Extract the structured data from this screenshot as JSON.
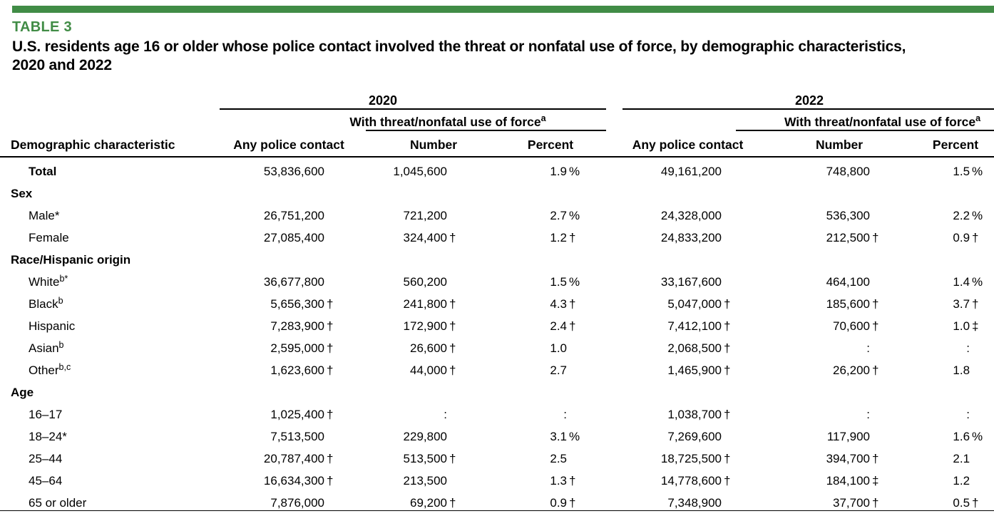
{
  "colors": {
    "accent_green": "#418c46"
  },
  "header": {
    "table_label": "TABLE 3",
    "title": "U.S. residents age 16 or older whose police contact involved the threat or nonfatal use of force, by demographic characteristics, 2020 and 2022"
  },
  "table": {
    "year_2020": "2020",
    "year_2022": "2022",
    "force_label": "With threat/nonfatal use of force",
    "force_footnote_marker": "a",
    "col_demographic": "Demographic characteristic",
    "col_any_contact": "Any police contact",
    "col_number": "Number",
    "col_percent": "Percent",
    "rows": [
      {
        "kind": "data",
        "bold": true,
        "label": "Total",
        "sup": "",
        "cells": [
          {
            "v": "53,836,600",
            "s": ""
          },
          {
            "v": "1,045,600",
            "s": ""
          },
          {
            "v": "1.9",
            "s": "%"
          },
          {
            "v": "49,161,200",
            "s": ""
          },
          {
            "v": "748,800",
            "s": ""
          },
          {
            "v": "1.5",
            "s": "%"
          }
        ]
      },
      {
        "kind": "section",
        "label": "Sex"
      },
      {
        "kind": "data",
        "bold": false,
        "label": "Male*",
        "sup": "",
        "cells": [
          {
            "v": "26,751,200",
            "s": ""
          },
          {
            "v": "721,200",
            "s": ""
          },
          {
            "v": "2.7",
            "s": "%"
          },
          {
            "v": "24,328,000",
            "s": ""
          },
          {
            "v": "536,300",
            "s": ""
          },
          {
            "v": "2.2",
            "s": "%"
          }
        ]
      },
      {
        "kind": "data",
        "bold": false,
        "label": "Female",
        "sup": "",
        "cells": [
          {
            "v": "27,085,400",
            "s": ""
          },
          {
            "v": "324,400",
            "s": "†"
          },
          {
            "v": "1.2",
            "s": "†"
          },
          {
            "v": "24,833,200",
            "s": ""
          },
          {
            "v": "212,500",
            "s": "†"
          },
          {
            "v": "0.9",
            "s": "†"
          }
        ]
      },
      {
        "kind": "section",
        "label": "Race/Hispanic origin"
      },
      {
        "kind": "data",
        "bold": false,
        "label": "White",
        "sup": "b*",
        "cells": [
          {
            "v": "36,677,800",
            "s": ""
          },
          {
            "v": "560,200",
            "s": ""
          },
          {
            "v": "1.5",
            "s": "%"
          },
          {
            "v": "33,167,600",
            "s": ""
          },
          {
            "v": "464,100",
            "s": ""
          },
          {
            "v": "1.4",
            "s": "%"
          }
        ]
      },
      {
        "kind": "data",
        "bold": false,
        "label": "Black",
        "sup": "b",
        "cells": [
          {
            "v": "5,656,300",
            "s": "†"
          },
          {
            "v": "241,800",
            "s": "†"
          },
          {
            "v": "4.3",
            "s": "†"
          },
          {
            "v": "5,047,000",
            "s": "†"
          },
          {
            "v": "185,600",
            "s": "†"
          },
          {
            "v": "3.7",
            "s": "†"
          }
        ]
      },
      {
        "kind": "data",
        "bold": false,
        "label": "Hispanic",
        "sup": "",
        "cells": [
          {
            "v": "7,283,900",
            "s": "†"
          },
          {
            "v": "172,900",
            "s": "†"
          },
          {
            "v": "2.4",
            "s": "†"
          },
          {
            "v": "7,412,100",
            "s": "†"
          },
          {
            "v": "70,600",
            "s": "†"
          },
          {
            "v": "1.0",
            "s": "‡"
          }
        ]
      },
      {
        "kind": "data",
        "bold": false,
        "label": "Asian",
        "sup": "b",
        "cells": [
          {
            "v": "2,595,000",
            "s": "†"
          },
          {
            "v": "26,600",
            "s": "†"
          },
          {
            "v": "1.0",
            "s": ""
          },
          {
            "v": "2,068,500",
            "s": "†"
          },
          {
            "v": ":",
            "s": ""
          },
          {
            "v": ":",
            "s": ""
          }
        ]
      },
      {
        "kind": "data",
        "bold": false,
        "label": "Other",
        "sup": "b,c",
        "cells": [
          {
            "v": "1,623,600",
            "s": "†"
          },
          {
            "v": "44,000",
            "s": "†"
          },
          {
            "v": "2.7",
            "s": ""
          },
          {
            "v": "1,465,900",
            "s": "†"
          },
          {
            "v": "26,200",
            "s": "†"
          },
          {
            "v": "1.8",
            "s": ""
          }
        ]
      },
      {
        "kind": "section",
        "label": "Age"
      },
      {
        "kind": "data",
        "bold": false,
        "label": "16–17",
        "sup": "",
        "cells": [
          {
            "v": "1,025,400",
            "s": "†"
          },
          {
            "v": ":",
            "s": ""
          },
          {
            "v": ":",
            "s": ""
          },
          {
            "v": "1,038,700",
            "s": "†"
          },
          {
            "v": ":",
            "s": ""
          },
          {
            "v": ":",
            "s": ""
          }
        ]
      },
      {
        "kind": "data",
        "bold": false,
        "label": "18–24*",
        "sup": "",
        "cells": [
          {
            "v": "7,513,500",
            "s": ""
          },
          {
            "v": "229,800",
            "s": ""
          },
          {
            "v": "3.1",
            "s": "%"
          },
          {
            "v": "7,269,600",
            "s": ""
          },
          {
            "v": "117,900",
            "s": ""
          },
          {
            "v": "1.6",
            "s": "%"
          }
        ]
      },
      {
        "kind": "data",
        "bold": false,
        "label": "25–44",
        "sup": "",
        "cells": [
          {
            "v": "20,787,400",
            "s": "†"
          },
          {
            "v": "513,500",
            "s": "†"
          },
          {
            "v": "2.5",
            "s": ""
          },
          {
            "v": "18,725,500",
            "s": "†"
          },
          {
            "v": "394,700",
            "s": "†"
          },
          {
            "v": "2.1",
            "s": ""
          }
        ]
      },
      {
        "kind": "data",
        "bold": false,
        "label": "45–64",
        "sup": "",
        "cells": [
          {
            "v": "16,634,300",
            "s": "†"
          },
          {
            "v": "213,500",
            "s": ""
          },
          {
            "v": "1.3",
            "s": "†"
          },
          {
            "v": "14,778,600",
            "s": "†"
          },
          {
            "v": "184,100",
            "s": "‡"
          },
          {
            "v": "1.2",
            "s": ""
          }
        ]
      },
      {
        "kind": "data",
        "bold": false,
        "label": "65 or older",
        "sup": "",
        "cells": [
          {
            "v": "7,876,000",
            "s": ""
          },
          {
            "v": "69,200",
            "s": "†"
          },
          {
            "v": "0.9",
            "s": "†"
          },
          {
            "v": "7,348,900",
            "s": ""
          },
          {
            "v": "37,700",
            "s": "†"
          },
          {
            "v": "0.5",
            "s": "†"
          }
        ]
      }
    ]
  }
}
